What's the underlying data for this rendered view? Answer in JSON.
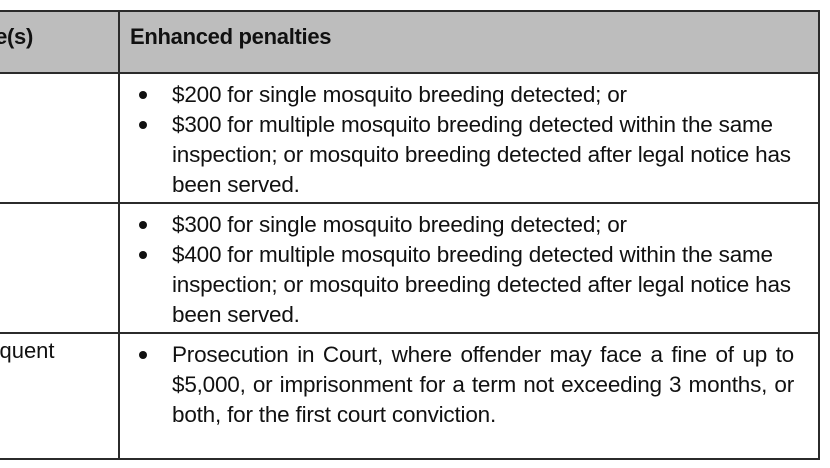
{
  "table": {
    "headers": {
      "left": "nce(s)",
      "right": "Enhanced penalties"
    },
    "rows": [
      {
        "left": "",
        "bullets": [
          "$200 for single mosquito breeding detected; or",
          "$300 for multiple mosquito breeding detected within the same inspection; or mosquito breeding detected after legal notice has been served."
        ]
      },
      {
        "left": "",
        "bullets": [
          "$300 for single mosquito breeding detected; or",
          "$400 for multiple mosquito breeding detected within the same inspection; or mosquito breeding detected after legal notice has been served."
        ]
      },
      {
        "left": "bsequent",
        "bullets": [
          "Prosecution in Court, where offender may face a fine of up to $5,000, or imprisonment for a term not exceeding 3 months, or both, for the first court conviction."
        ]
      }
    ]
  }
}
